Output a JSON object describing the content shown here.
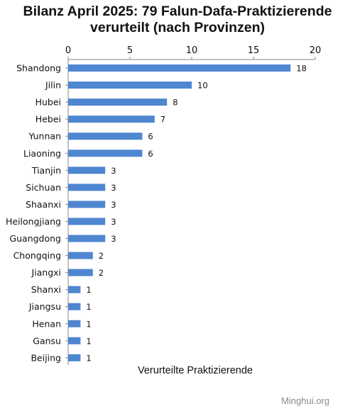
{
  "chart_data": {
    "type": "bar",
    "orientation": "horizontal",
    "title_lines": [
      "Bilanz April 2025: 79 Falun-Dafa-Praktizierende",
      "verurteilt (nach Provinzen)"
    ],
    "xlabel": "Verurteilte Praktizierende",
    "xlim": [
      0,
      20
    ],
    "xticks": [
      0,
      5,
      10,
      15,
      20
    ],
    "categories": [
      "Shandong",
      "Jilin",
      "Hubei",
      "Hebei",
      "Yunnan",
      "Liaoning",
      "Tianjin",
      "Sichuan",
      "Shaanxi",
      "Heilongjiang",
      "Guangdong",
      "Chongqing",
      "Jiangxi",
      "Shanxi",
      "Jiangsu",
      "Henan",
      "Gansu",
      "Beijing"
    ],
    "values": [
      18,
      10,
      8,
      7,
      6,
      6,
      3,
      3,
      3,
      3,
      3,
      2,
      2,
      1,
      1,
      1,
      1,
      1
    ],
    "bar_color": "#4f86d0",
    "grid": false,
    "x_axis_position": "top"
  },
  "watermark": "Minghui.org"
}
